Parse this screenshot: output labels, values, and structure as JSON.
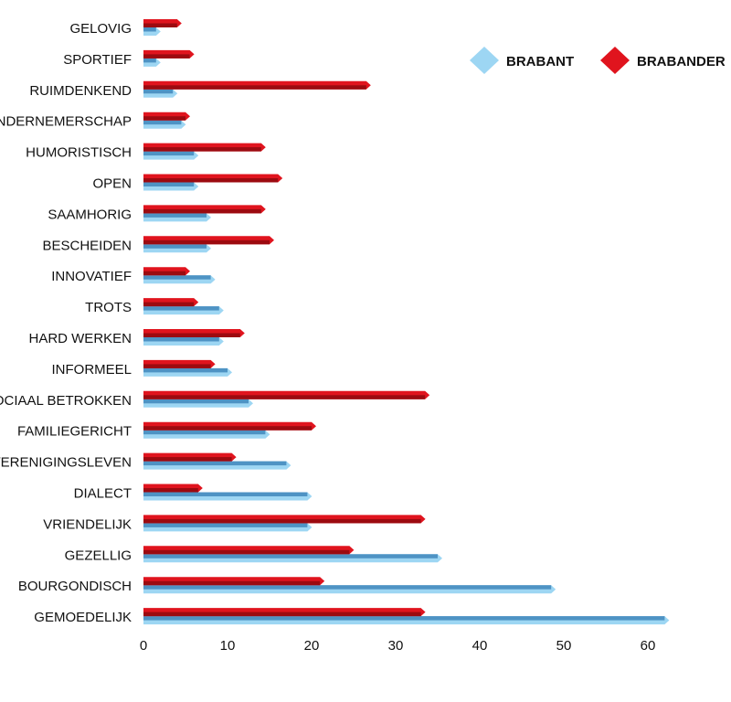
{
  "chart_data": {
    "type": "bar",
    "orientation": "horizontal",
    "categories": [
      "GELOVIG",
      "SPORTIEF",
      "RUIMDENKEND",
      "ONDERNEMERSCHAP",
      "HUMORISTISCH",
      "OPEN",
      "SAAMHORIG",
      "BESCHEIDEN",
      "INNOVATIEF",
      "TROTS",
      "HARD WERKEN",
      "INFORMEEL",
      "SOCIAAL BETROKKEN",
      "FAMILIEGERICHT",
      "VERENIGINGSLEVEN",
      "DIALECT",
      "VRIENDELIJK",
      "GEZELLIG",
      "BOURGONDISCH",
      "GEMOEDELIJK"
    ],
    "series": [
      {
        "name": "BRABANT",
        "color": "#9dd6f3",
        "shade": "#4e93c4",
        "values": [
          1.5,
          1.5,
          3.5,
          4.5,
          6,
          6,
          7.5,
          7.5,
          8,
          9,
          9,
          10,
          12.5,
          14.5,
          17,
          19.5,
          19.5,
          35,
          48.5,
          62
        ]
      },
      {
        "name": "BRABANDER",
        "color": "#e0141e",
        "shade": "#9c0a10",
        "values": [
          4,
          5.5,
          26.5,
          5,
          14,
          16,
          14,
          15,
          5,
          6,
          11.5,
          8,
          33.5,
          20,
          10.5,
          6.5,
          33,
          24.5,
          21,
          33
        ]
      }
    ],
    "xlim": [
      0,
      65
    ],
    "xticks": [
      "0",
      "10",
      "20",
      "30",
      "40",
      "50",
      "60"
    ],
    "legend_position": "top-right",
    "grid": false
  }
}
